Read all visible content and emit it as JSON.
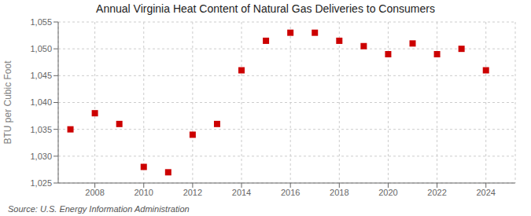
{
  "chart_data": {
    "type": "scatter",
    "title": "Annual Virginia Heat Content of Natural Gas Deliveries to Consumers",
    "ylabel": "BTU per Cubic Foot",
    "annotations": [
      "Source: U.S. Energy Information Administration"
    ],
    "x": [
      2007,
      2008,
      2009,
      2010,
      2011,
      2012,
      2013,
      2014,
      2015,
      2016,
      2017,
      2018,
      2019,
      2020,
      2021,
      2022,
      2023,
      2024
    ],
    "values": [
      1035.0,
      1038.0,
      1036.0,
      1028.0,
      1027.0,
      1034.0,
      1036.0,
      1046.0,
      1051.5,
      1053.0,
      1053.0,
      1051.5,
      1050.5,
      1049.0,
      1051.0,
      1049.0,
      1050.0,
      1046.0
    ],
    "color": "#cc0000",
    "marker": "square",
    "xlim": [
      2006.5,
      2025.2
    ],
    "xticks": [
      2008,
      2010,
      2012,
      2014,
      2016,
      2018,
      2020,
      2022,
      2024
    ],
    "ylim": [
      1025,
      1055
    ],
    "yticks": [
      {
        "value": 1025,
        "label": "1,025"
      },
      {
        "value": 1030,
        "label": "1,030"
      },
      {
        "value": 1035,
        "label": "1,035"
      },
      {
        "value": 1040,
        "label": "1,040"
      },
      {
        "value": 1045,
        "label": "1,045"
      },
      {
        "value": 1050,
        "label": "1,050"
      },
      {
        "value": 1055,
        "label": "1,055"
      }
    ],
    "grid": true
  }
}
